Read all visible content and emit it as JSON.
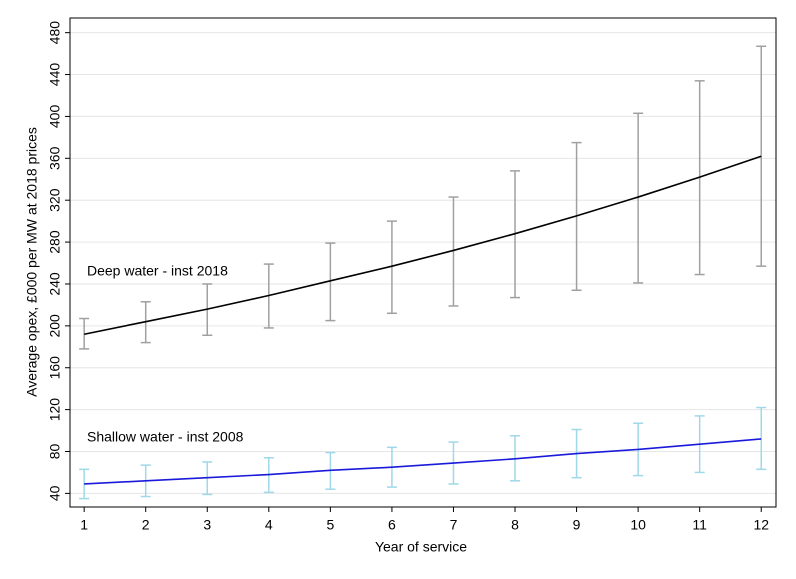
{
  "chart_data": {
    "type": "line",
    "x_label": "Year of service",
    "y_label": "Average opex, £000 per MW at 2018 prices",
    "x": [
      1,
      2,
      3,
      4,
      5,
      6,
      7,
      8,
      9,
      10,
      11,
      12
    ],
    "xlim": [
      0.77,
      12.24
    ],
    "xticks": [
      1,
      2,
      3,
      4,
      5,
      6,
      7,
      8,
      9,
      10,
      11,
      12
    ],
    "ylim": [
      27,
      494
    ],
    "yticks": [
      40,
      80,
      120,
      160,
      200,
      240,
      280,
      320,
      360,
      400,
      440,
      480
    ],
    "grid": true,
    "series": [
      {
        "name": "Deep water - inst 2018",
        "color": "#000000",
        "error_color": "#a0a0a0",
        "values": [
          192,
          204,
          216,
          229,
          243,
          257,
          272,
          288,
          305,
          323,
          342,
          362
        ],
        "lower": [
          178,
          184,
          191,
          198,
          205,
          212,
          219,
          227,
          234,
          241,
          249,
          257
        ],
        "upper": [
          207,
          223,
          240,
          259,
          279,
          300,
          323,
          348,
          375,
          403,
          434,
          467
        ]
      },
      {
        "name": "Shallow water - inst 2008",
        "color": "#1a1adb",
        "error_color": "#9fd8e8",
        "values": [
          49,
          52,
          55,
          58,
          62,
          65,
          69,
          73,
          78,
          82,
          87,
          92
        ],
        "lower": [
          35,
          37,
          39,
          41,
          44,
          46,
          49,
          52,
          55,
          57,
          60,
          63
        ],
        "upper": [
          63,
          67,
          70,
          74,
          79,
          84,
          89,
          95,
          101,
          107,
          114,
          122
        ]
      }
    ]
  }
}
